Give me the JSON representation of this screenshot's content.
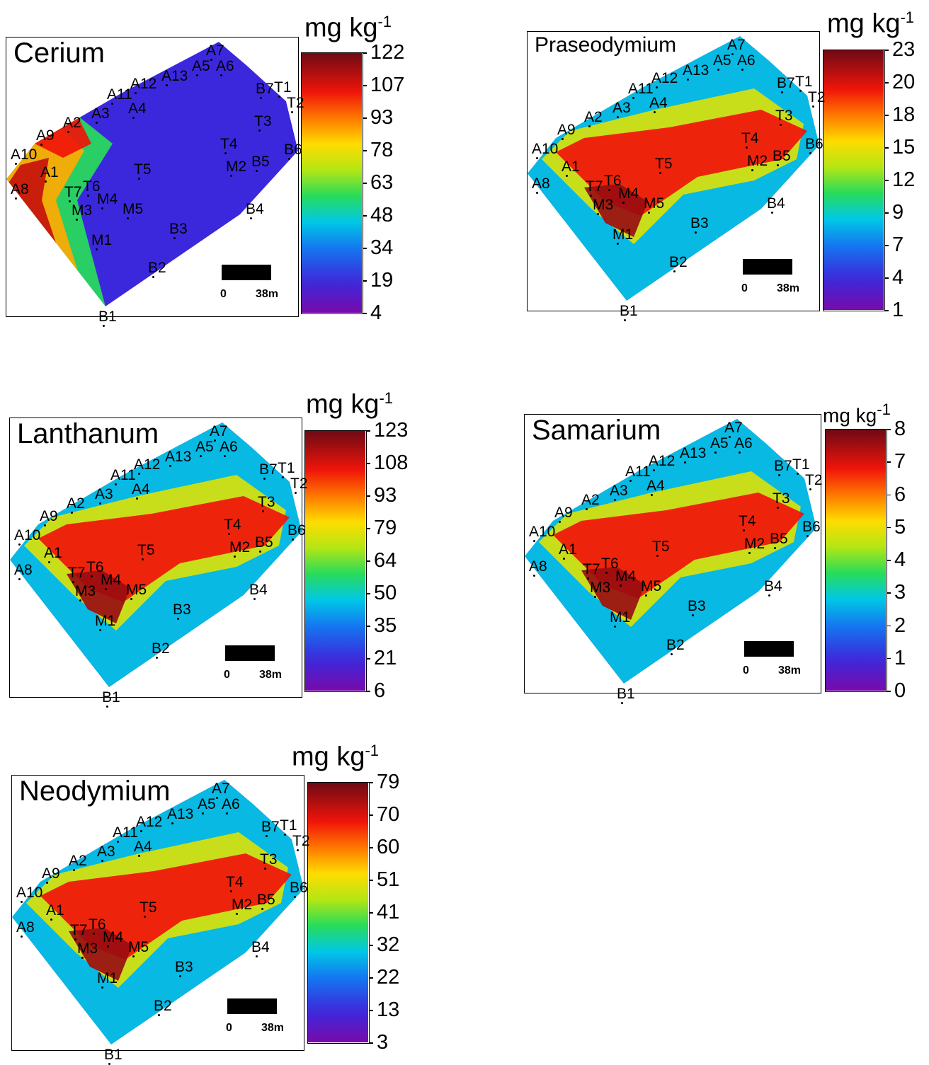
{
  "panels": [
    {
      "id": "cerium",
      "title": "Cerium",
      "unit": "mg kg",
      "unit_exp": "-1",
      "legend_ticks": [
        "122",
        "107",
        "93",
        "78",
        "63",
        "48",
        "34",
        "19",
        "4"
      ],
      "scale_left": "0",
      "scale_right": "38m",
      "stations": [
        "A7",
        "A5",
        "A6",
        "A12",
        "A13",
        "A11",
        "A4",
        "B7",
        "T1",
        "T2",
        "A3",
        "T3",
        "A2",
        "A9",
        "T4",
        "B6",
        "M2",
        "B5",
        "A10",
        "A1",
        "T5",
        "T6",
        "A8",
        "T7",
        "M4",
        "M5",
        "M3",
        "B4",
        "B3",
        "M1",
        "B2",
        "B1"
      ]
    },
    {
      "id": "praseodymium",
      "title": "Praseodymium",
      "unit": "mg kg",
      "unit_exp": "-1",
      "legend_ticks": [
        "23",
        "20",
        "18",
        "15",
        "12",
        "9",
        "7",
        "4",
        "1"
      ],
      "scale_left": "0",
      "scale_right": "38m",
      "stations": [
        "A7",
        "A13",
        "A6",
        "A12",
        "A5",
        "A11",
        "B7",
        "T1",
        "A3",
        "A4",
        "T2",
        "A2",
        "T3",
        "A9",
        "T4",
        "B6",
        "A10",
        "B5",
        "T5",
        "M2",
        "A1",
        "T6",
        "A8",
        "T7",
        "M4",
        "M5",
        "M3",
        "B4",
        "B3",
        "M1",
        "B2",
        "B1"
      ]
    },
    {
      "id": "lanthanum",
      "title": "Lanthanum",
      "unit": "mg kg",
      "unit_exp": "-1",
      "legend_ticks": [
        "123",
        "108",
        "93",
        "79",
        "64",
        "50",
        "35",
        "21",
        "6"
      ],
      "scale_left": "0",
      "scale_right": "38m",
      "stations": [
        "A7",
        "A5",
        "A6",
        "A13",
        "A12",
        "A11",
        "B7",
        "T1",
        "A3",
        "A4",
        "T2",
        "A2",
        "T3",
        "A9",
        "T4",
        "B6",
        "A10",
        "M2",
        "B5",
        "A1",
        "T5",
        "A8",
        "T6",
        "T7",
        "M4",
        "M5",
        "M3",
        "B4",
        "B3",
        "M1",
        "B2",
        "B1"
      ]
    },
    {
      "id": "samarium",
      "title": "Samarium",
      "unit": "mg kg",
      "unit_exp": "-1",
      "legend_ticks": [
        "8",
        "7",
        "6",
        "5",
        "4",
        "3",
        "2",
        "1",
        "0"
      ],
      "scale_left": "0",
      "scale_right": "38m",
      "stations": [
        "A7",
        "A5",
        "A6",
        "A12",
        "A13",
        "A11",
        "B7",
        "T1",
        "A3",
        "A4",
        "T2",
        "A2",
        "T3",
        "A9",
        "T4",
        "B6",
        "A10",
        "M2",
        "B5",
        "A1",
        "T5",
        "A8",
        "T6",
        "T7",
        "M4",
        "M5",
        "M3",
        "B4",
        "B3",
        "M1",
        "B2",
        "B1"
      ]
    },
    {
      "id": "neodymium",
      "title": "Neodymium",
      "unit": "mg kg",
      "unit_exp": "-1",
      "legend_ticks": [
        "79",
        "70",
        "60",
        "51",
        "41",
        "32",
        "22",
        "13",
        "3"
      ],
      "scale_left": "0",
      "scale_right": "38m",
      "stations": [
        "A7",
        "A13",
        "A5",
        "A6",
        "A12",
        "A11",
        "A4",
        "B7",
        "T1",
        "A3",
        "T2",
        "A2",
        "T3",
        "A9",
        "T4",
        "B6",
        "A10",
        "M2",
        "B5",
        "A1",
        "T5",
        "A8",
        "T6",
        "T7",
        "M4",
        "M5",
        "M3",
        "B4",
        "B3",
        "M1",
        "B2",
        "B1"
      ]
    }
  ]
}
